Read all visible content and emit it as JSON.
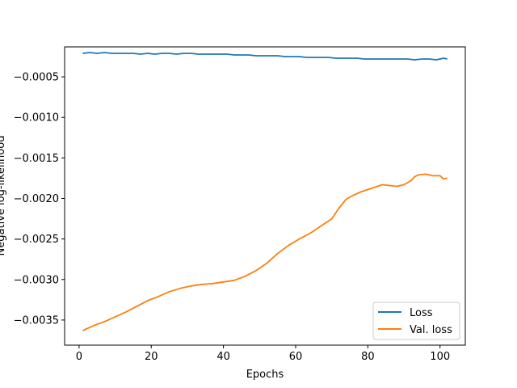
{
  "chart_data": {
    "type": "line",
    "title": "",
    "xlabel": "Epochs",
    "ylabel": "Negative log-likelihood",
    "xlim": [
      -4,
      107
    ],
    "ylim": [
      -0.00381,
      -0.00013
    ],
    "xticks": [
      0,
      20,
      40,
      60,
      80,
      100
    ],
    "xtick_labels": [
      "0",
      "20",
      "40",
      "60",
      "80",
      "100"
    ],
    "yticks": [
      -0.0035,
      -0.003,
      -0.0025,
      -0.002,
      -0.0015,
      -0.001,
      -0.0005
    ],
    "ytick_labels": [
      "−0.0035",
      "−0.0030",
      "−0.0025",
      "−0.0020",
      "−0.0015",
      "−0.0010",
      "−0.0005"
    ],
    "grid": false,
    "legend_position": "lower-right",
    "series": [
      {
        "name": "Loss",
        "color": "#1f77b4",
        "x": [
          1,
          3,
          5,
          7,
          9,
          11,
          13,
          15,
          17,
          19,
          21,
          23,
          25,
          27,
          29,
          31,
          33,
          35,
          37,
          39,
          41,
          43,
          45,
          47,
          49,
          51,
          53,
          55,
          57,
          59,
          61,
          63,
          65,
          67,
          69,
          71,
          73,
          75,
          77,
          79,
          81,
          83,
          85,
          87,
          89,
          91,
          93,
          95,
          97,
          99,
          101,
          102
        ],
        "values": [
          -0.00021,
          -0.0002,
          -0.00021,
          -0.0002,
          -0.00021,
          -0.00021,
          -0.00021,
          -0.00021,
          -0.00022,
          -0.00021,
          -0.00022,
          -0.00021,
          -0.00021,
          -0.00022,
          -0.00021,
          -0.00021,
          -0.00022,
          -0.00022,
          -0.00022,
          -0.00022,
          -0.00022,
          -0.00023,
          -0.00023,
          -0.00023,
          -0.00024,
          -0.00024,
          -0.00024,
          -0.00024,
          -0.00025,
          -0.00025,
          -0.00025,
          -0.00026,
          -0.00026,
          -0.00026,
          -0.00026,
          -0.00027,
          -0.00027,
          -0.00027,
          -0.00027,
          -0.00028,
          -0.00028,
          -0.00028,
          -0.00028,
          -0.00028,
          -0.00028,
          -0.00028,
          -0.00029,
          -0.00028,
          -0.00028,
          -0.00029,
          -0.00027,
          -0.00028
        ]
      },
      {
        "name": "Val. loss",
        "color": "#ff7f0e",
        "x": [
          1,
          4,
          7,
          10,
          13,
          16,
          19,
          22,
          25,
          28,
          31,
          34,
          37,
          40,
          43,
          46,
          49,
          52,
          55,
          58,
          61,
          64,
          67,
          70,
          72,
          74,
          76,
          78,
          80,
          82,
          84,
          86,
          88,
          90,
          92,
          93,
          94,
          96,
          98,
          100,
          101,
          102
        ],
        "values": [
          -0.00363,
          -0.00357,
          -0.00352,
          -0.00346,
          -0.0034,
          -0.00333,
          -0.00326,
          -0.00321,
          -0.00315,
          -0.00311,
          -0.00308,
          -0.00306,
          -0.00305,
          -0.00303,
          -0.00301,
          -0.00296,
          -0.00289,
          -0.0028,
          -0.00268,
          -0.00258,
          -0.0025,
          -0.00243,
          -0.00234,
          -0.00225,
          -0.00212,
          -0.00201,
          -0.00196,
          -0.00192,
          -0.00189,
          -0.00186,
          -0.00183,
          -0.00184,
          -0.00185,
          -0.00183,
          -0.00178,
          -0.00173,
          -0.00171,
          -0.0017,
          -0.00172,
          -0.00172,
          -0.00176,
          -0.00175
        ]
      }
    ]
  }
}
